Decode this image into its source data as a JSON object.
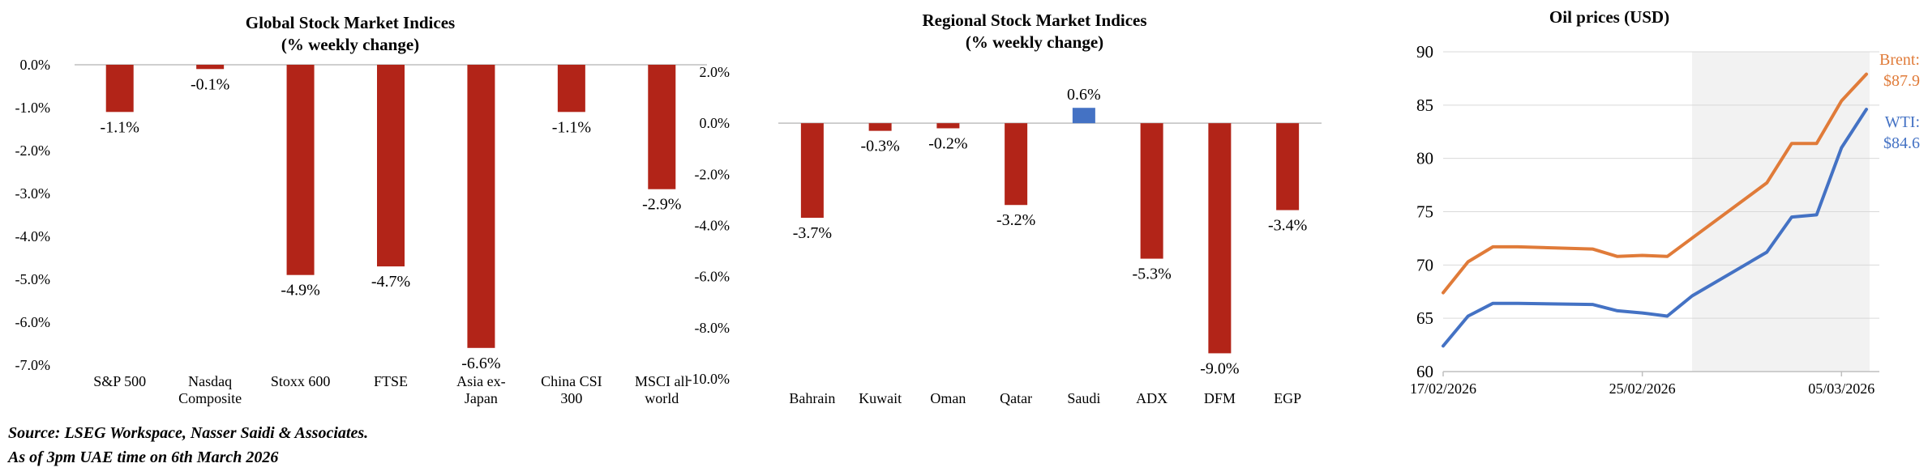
{
  "colors": {
    "negative_bar": "#B22418",
    "positive_bar": "#4472C4",
    "brent_line": "#E07B39",
    "wti_line": "#4472C4",
    "shade": "#F2F2F2",
    "axis": "#BFBFBF",
    "grid": "#D9D9D9"
  },
  "chart_data": [
    {
      "type": "bar",
      "title": "Global Stock Market Indices",
      "subtitle": "(% weekly change)",
      "categories": [
        "S&P 500",
        "Nasdaq\nComposite",
        "Stoxx 600",
        "FTSE",
        "Asia ex-\nJapan",
        "China CSI\n300",
        "MSCI all\nworld"
      ],
      "values": [
        -1.1,
        -0.1,
        -4.9,
        -4.7,
        -6.6,
        -1.1,
        -2.9
      ],
      "data_labels": [
        "-1.1%",
        "-0.1%",
        "-4.9%",
        "-4.7%",
        "-6.6%",
        "-1.1%",
        "-2.9%"
      ],
      "ylim": [
        -7.0,
        0.0
      ],
      "yticks": [
        0,
        -1,
        -2,
        -3,
        -4,
        -5,
        -6,
        -7
      ],
      "ytick_labels": [
        "0.0%",
        "-1.0%",
        "-2.0%",
        "-3.0%",
        "-4.0%",
        "-5.0%",
        "-6.0%",
        "-7.0%"
      ],
      "grid": false,
      "legend": "none"
    },
    {
      "type": "bar",
      "title": "Regional Stock Market Indices",
      "subtitle": "(% weekly change)",
      "categories": [
        "Bahrain",
        "Kuwait",
        "Oman",
        "Qatar",
        "Saudi",
        "ADX",
        "DFM",
        "EGP"
      ],
      "values": [
        -3.7,
        -0.3,
        -0.2,
        -3.2,
        0.6,
        -5.3,
        -9.0,
        -3.4
      ],
      "data_labels": [
        "-3.7%",
        "-0.3%",
        "-0.2%",
        "-3.2%",
        "0.6%",
        "-5.3%",
        "-9.0%",
        "-3.4%"
      ],
      "ylim": [
        -10.0,
        2.0
      ],
      "yticks": [
        2,
        0,
        -2,
        -4,
        -6,
        -8,
        -10
      ],
      "ytick_labels": [
        "2.0%",
        "0.0%",
        "-2.0%",
        "-4.0%",
        "-6.0%",
        "-8.0%",
        "-10.0%"
      ],
      "grid": false,
      "legend": "none"
    },
    {
      "type": "line",
      "title": "Oil prices (USD)",
      "x_ticks": [
        "17/02/2026",
        "25/02/2026",
        "05/03/2026"
      ],
      "ylim": [
        60,
        90
      ],
      "yticks": [
        60,
        65,
        70,
        75,
        80,
        85,
        90
      ],
      "grid": true,
      "legend": "end-labels",
      "shaded_region": {
        "x_start": "27/02/2026",
        "x_end": "06/03/2026"
      },
      "series": [
        {
          "name": "Brent",
          "label": "Brent:",
          "end_value_label": "$87.9",
          "x": [
            "17/02/2026",
            "18/02/2026",
            "19/02/2026",
            "20/02/2026",
            "23/02/2026",
            "24/02/2026",
            "25/02/2026",
            "26/02/2026",
            "02/03/2026",
            "03/03/2026",
            "04/03/2026",
            "05/03/2026",
            "06/03/2026"
          ],
          "values": [
            67.4,
            70.3,
            71.7,
            71.7,
            71.5,
            70.8,
            70.9,
            70.8,
            77.7,
            81.4,
            81.4,
            85.4,
            87.9
          ]
        },
        {
          "name": "WTI",
          "label": "WTI:",
          "end_value_label": "$84.6",
          "x": [
            "17/02/2026",
            "18/02/2026",
            "19/02/2026",
            "20/02/2026",
            "23/02/2026",
            "24/02/2026",
            "25/02/2026",
            "26/02/2026",
            "27/02/2026",
            "02/03/2026",
            "03/03/2026",
            "04/03/2026",
            "05/03/2026",
            "06/03/2026"
          ],
          "values": [
            62.4,
            65.2,
            66.4,
            66.4,
            66.3,
            65.7,
            65.5,
            65.2,
            67.1,
            71.2,
            74.5,
            74.7,
            81.0,
            84.6
          ]
        }
      ]
    }
  ],
  "footer": {
    "source": "Source: LSEG Workspace, Nasser Saidi & Associates.",
    "asof": "As of 3pm UAE time on 6th March 2026"
  }
}
